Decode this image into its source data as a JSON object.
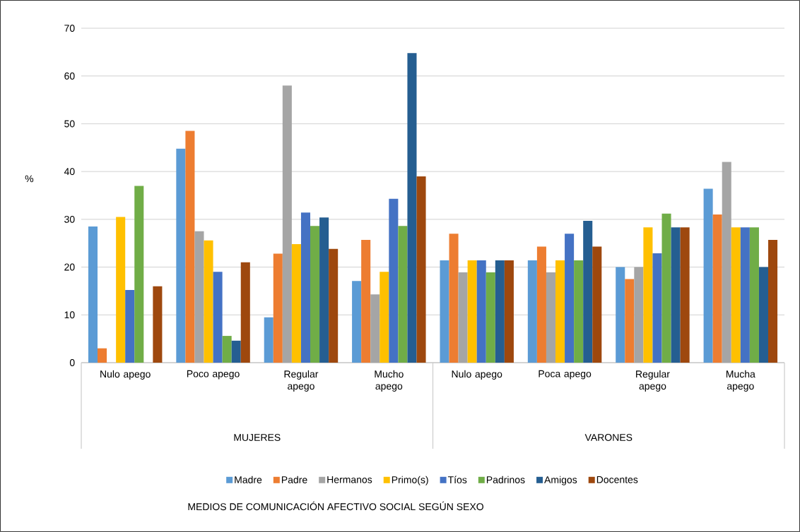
{
  "chart_data": {
    "type": "bar",
    "ylabel": "%",
    "categories": [
      "Nulo apego",
      "Poco apego",
      "Regular apego",
      "Mucho apego",
      "Nulo apego",
      "Poca apego",
      "Regular apego",
      "Mucha apego"
    ],
    "annotations": [
      "MUJERES",
      "VARONES",
      "MEDIOS DE COMUNICACIÓN AFECTIVO SOCIAL SEGÚN SEXO"
    ],
    "series": [
      {
        "name": "Madre",
        "color": "#5b9bd5",
        "values": [
          28.5,
          44.8,
          9.5,
          17.1,
          21.4,
          21.4,
          20,
          36.4
        ]
      },
      {
        "name": "Padre",
        "color": "#ed7d31",
        "values": [
          3,
          48.5,
          22.8,
          25.7,
          27,
          24.3,
          17.5,
          31
        ]
      },
      {
        "name": "Hermanos",
        "color": "#a5a5a5",
        "values": [
          0,
          27.5,
          58,
          14.3,
          18.9,
          18.9,
          20,
          42
        ]
      },
      {
        "name": "Primo(s)",
        "color": "#ffc000",
        "values": [
          30.5,
          25.6,
          24.8,
          19,
          21.4,
          21.4,
          28.3,
          28.3
        ]
      },
      {
        "name": "Tíos",
        "color": "#4472c4",
        "values": [
          15.2,
          19,
          31.4,
          34.3,
          21.4,
          27,
          22.9,
          28.3
        ]
      },
      {
        "name": "Padrinos",
        "color": "#70ad47",
        "values": [
          37,
          5.6,
          28.6,
          28.6,
          18.9,
          21.4,
          31.2,
          28.3
        ]
      },
      {
        "name": "Amigos",
        "color": "#255e91",
        "values": [
          0,
          4.6,
          30.4,
          64.8,
          21.4,
          29.7,
          28.3,
          20
        ]
      },
      {
        "name": "Docentes",
        "color": "#9e480e",
        "values": [
          16,
          21,
          23.8,
          39,
          21.4,
          24.3,
          28.3,
          25.7
        ]
      }
    ],
    "ylim": [
      0,
      70
    ],
    "yticks": [
      0,
      10,
      20,
      30,
      40,
      50,
      60,
      70
    ],
    "grid": "y",
    "legend": "bottom"
  }
}
